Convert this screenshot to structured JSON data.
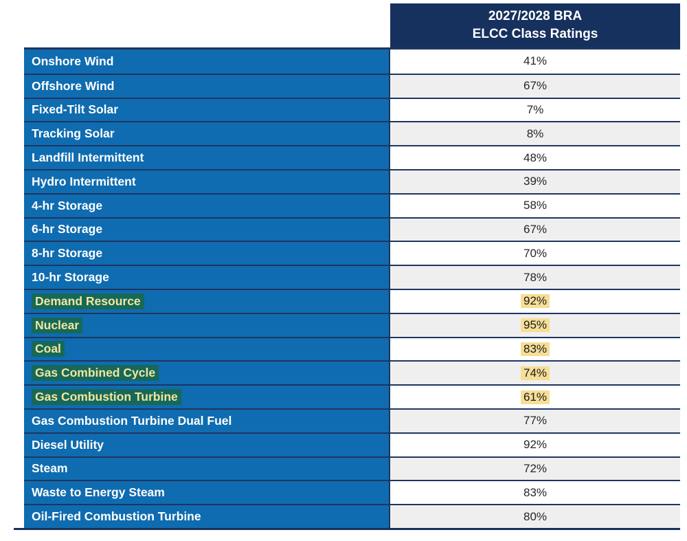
{
  "header": {
    "line1": "2027/2028 BRA",
    "line2": "ELCC Class Ratings"
  },
  "table": {
    "rows": [
      {
        "label": "Onshore Wind",
        "value": "41%",
        "highlight": false
      },
      {
        "label": "Offshore Wind",
        "value": "67%",
        "highlight": false
      },
      {
        "label": "Fixed-Tilt Solar",
        "value": "7%",
        "highlight": false
      },
      {
        "label": "Tracking Solar",
        "value": "8%",
        "highlight": false
      },
      {
        "label": "Landfill Intermittent",
        "value": "48%",
        "highlight": false
      },
      {
        "label": "Hydro Intermittent",
        "value": "39%",
        "highlight": false
      },
      {
        "label": "4-hr Storage",
        "value": "58%",
        "highlight": false
      },
      {
        "label": "6-hr Storage",
        "value": "67%",
        "highlight": false
      },
      {
        "label": "8-hr Storage",
        "value": "70%",
        "highlight": false
      },
      {
        "label": "10-hr Storage",
        "value": "78%",
        "highlight": false
      },
      {
        "label": "Demand Resource",
        "value": "92%",
        "highlight": true
      },
      {
        "label": "Nuclear",
        "value": "95%",
        "highlight": true
      },
      {
        "label": "Coal",
        "value": "83%",
        "highlight": true
      },
      {
        "label": "Gas Combined Cycle",
        "value": "74%",
        "highlight": true
      },
      {
        "label": "Gas Combustion Turbine",
        "value": "61%",
        "highlight": true
      },
      {
        "label": "Gas Combustion Turbine Dual Fuel",
        "value": "77%",
        "highlight": false
      },
      {
        "label": "Diesel Utility",
        "value": "92%",
        "highlight": false
      },
      {
        "label": "Steam",
        "value": "72%",
        "highlight": false
      },
      {
        "label": "Waste to Energy Steam",
        "value": "83%",
        "highlight": false
      },
      {
        "label": "Oil-Fired Combustion Turbine",
        "value": "80%",
        "highlight": false
      }
    ]
  },
  "chart_data": {
    "type": "table",
    "title": "2027/2028 BRA ELCC Class Ratings",
    "columns": [
      "",
      "2027/2028 BRA ELCC Class Ratings"
    ],
    "categories": [
      "Onshore Wind",
      "Offshore Wind",
      "Fixed-Tilt Solar",
      "Tracking Solar",
      "Landfill Intermittent",
      "Hydro Intermittent",
      "4-hr Storage",
      "6-hr Storage",
      "8-hr Storage",
      "10-hr Storage",
      "Demand Resource",
      "Nuclear",
      "Coal",
      "Gas Combined Cycle",
      "Gas Combustion Turbine",
      "Gas Combustion Turbine Dual Fuel",
      "Diesel Utility",
      "Steam",
      "Waste to Energy Steam",
      "Oil-Fired Combustion Turbine"
    ],
    "values_percent": [
      41,
      67,
      7,
      8,
      48,
      39,
      58,
      67,
      70,
      78,
      92,
      95,
      83,
      74,
      61,
      77,
      92,
      72,
      83,
      80
    ],
    "highlighted_categories": [
      "Demand Resource",
      "Nuclear",
      "Coal",
      "Gas Combined Cycle",
      "Gas Combustion Turbine"
    ]
  },
  "colors": {
    "row_blue": "#0F6CB0",
    "header_navy": "#16315E",
    "border_navy": "#1E3560",
    "zebra_gray": "#EFEFEF",
    "label_highlight_bg": "#176858",
    "label_highlight_text": "#F2E6A0",
    "value_highlight_bg": "#F6DE96"
  }
}
